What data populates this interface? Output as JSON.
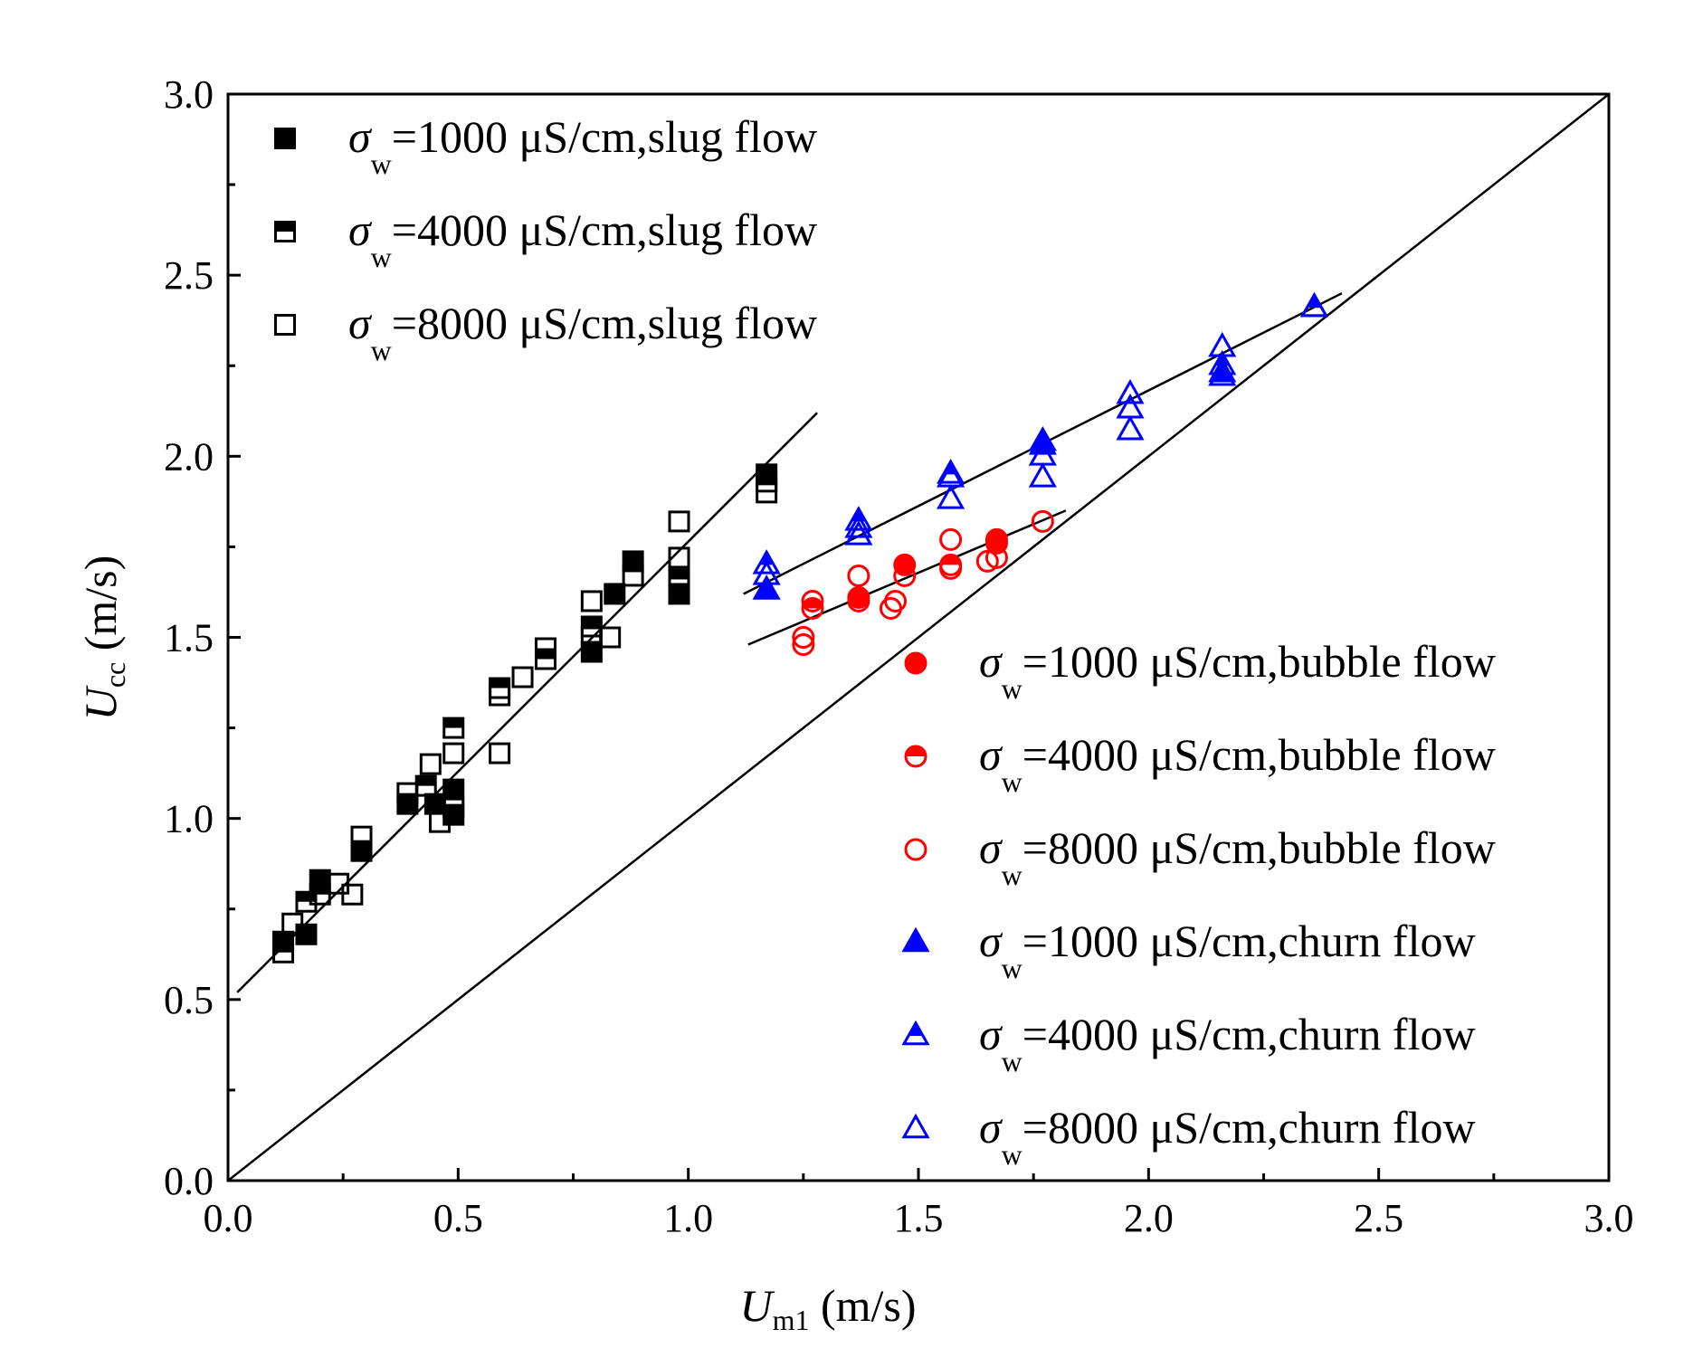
{
  "chart_data": {
    "type": "scatter",
    "xlabel": {
      "main": "U",
      "sub": "m1",
      "unit": " (m/s)"
    },
    "ylabel": {
      "main": "U",
      "sub": "cc",
      "unit": " (m/s)"
    },
    "xlim": [
      0.0,
      3.0
    ],
    "ylim": [
      0.0,
      3.0
    ],
    "xticks": [
      "0.0",
      "0.5",
      "1.0",
      "1.5",
      "2.0",
      "2.5",
      "3.0"
    ],
    "yticks": [
      "0.0",
      "0.5",
      "1.0",
      "1.5",
      "2.0",
      "2.5",
      "3.0"
    ],
    "grid": false,
    "series": [
      {
        "name": "σw=1000 μS/cm,slug flow",
        "symbol": "σ",
        "sub": "w",
        "rest": "=1000 μS/cm,slug flow",
        "color": "#000000",
        "marker": "square",
        "fill": "full",
        "points": [
          [
            0.12,
            0.66
          ],
          [
            0.17,
            0.68
          ],
          [
            0.2,
            0.83
          ],
          [
            0.29,
            0.91
          ],
          [
            0.39,
            1.04
          ],
          [
            0.45,
            1.04
          ],
          [
            0.49,
            1.01
          ],
          [
            0.49,
            1.08
          ],
          [
            0.79,
            1.46
          ],
          [
            0.84,
            1.62
          ],
          [
            0.88,
            1.71
          ],
          [
            0.98,
            1.62
          ],
          [
            1.17,
            1.95
          ]
        ]
      },
      {
        "name": "σw=4000 μS/cm,slug flow",
        "symbol": "σ",
        "sub": "w",
        "rest": "=4000 μS/cm,slug flow",
        "color": "#000000",
        "marker": "square",
        "fill": "half",
        "points": [
          [
            0.17,
            0.77
          ],
          [
            0.2,
            0.79
          ],
          [
            0.43,
            1.09
          ],
          [
            0.49,
            1.25
          ],
          [
            0.59,
            1.36
          ],
          [
            0.69,
            1.44
          ],
          [
            0.79,
            1.53
          ],
          [
            0.98,
            1.66
          ],
          [
            1.17,
            1.93
          ]
        ]
      },
      {
        "name": "σw=8000 μS/cm,slug flow",
        "symbol": "σ",
        "sub": "w",
        "rest": "=8000 μS/cm,slug flow",
        "color": "#000000",
        "marker": "square",
        "fill": "none",
        "points": [
          [
            0.12,
            0.63
          ],
          [
            0.14,
            0.71
          ],
          [
            0.24,
            0.82
          ],
          [
            0.27,
            0.79
          ],
          [
            0.29,
            0.95
          ],
          [
            0.39,
            1.07
          ],
          [
            0.44,
            1.15
          ],
          [
            0.46,
            0.99
          ],
          [
            0.49,
            1.18
          ],
          [
            0.49,
            1.03
          ],
          [
            0.59,
            1.34
          ],
          [
            0.59,
            1.18
          ],
          [
            0.64,
            1.39
          ],
          [
            0.69,
            1.47
          ],
          [
            0.79,
            1.6
          ],
          [
            0.79,
            1.5
          ],
          [
            0.83,
            1.5
          ],
          [
            0.88,
            1.67
          ],
          [
            0.98,
            1.82
          ],
          [
            0.98,
            1.72
          ],
          [
            1.17,
            1.9
          ]
        ]
      },
      {
        "name": "σw=1000 μS/cm,bubble flow",
        "symbol": "σ",
        "sub": "w",
        "rest": "=1000 μS/cm,bubble flow",
        "color": "#ff0000",
        "marker": "circle",
        "fill": "full",
        "points": [
          [
            1.37,
            1.61
          ],
          [
            1.47,
            1.7
          ],
          [
            1.67,
            1.76
          ]
        ]
      },
      {
        "name": "σw=4000 μS/cm,bubble flow",
        "symbol": "σ",
        "sub": "w",
        "rest": "=4000 μS/cm,bubble flow",
        "color": "#ff0000",
        "marker": "circle",
        "fill": "half",
        "points": [
          [
            1.27,
            1.58
          ],
          [
            1.57,
            1.7
          ],
          [
            1.67,
            1.77
          ]
        ]
      },
      {
        "name": "σw=8000 μS/cm,bubble flow",
        "symbol": "σ",
        "sub": "w",
        "rest": "=8000 μS/cm,bubble flow",
        "color": "#ff0000",
        "marker": "circle",
        "fill": "none",
        "points": [
          [
            1.25,
            1.48
          ],
          [
            1.25,
            1.5
          ],
          [
            1.27,
            1.6
          ],
          [
            1.37,
            1.67
          ],
          [
            1.37,
            1.6
          ],
          [
            1.44,
            1.58
          ],
          [
            1.45,
            1.6
          ],
          [
            1.47,
            1.67
          ],
          [
            1.57,
            1.77
          ],
          [
            1.57,
            1.69
          ],
          [
            1.65,
            1.71
          ],
          [
            1.67,
            1.72
          ],
          [
            1.77,
            1.82
          ]
        ]
      },
      {
        "name": "σw=1000 μS/cm,churn flow",
        "symbol": "σ",
        "sub": "w",
        "rest": "=1000 μS/cm,churn flow",
        "color": "#0000ff",
        "marker": "triangle",
        "fill": "full",
        "points": [
          [
            1.17,
            1.63
          ],
          [
            1.77,
            2.03
          ],
          [
            2.16,
            2.23
          ]
        ]
      },
      {
        "name": "σw=4000 μS/cm,churn flow",
        "symbol": "σ",
        "sub": "w",
        "rest": "=4000 μS/cm,churn flow",
        "color": "#0000ff",
        "marker": "triangle",
        "fill": "half",
        "points": [
          [
            1.17,
            1.7
          ],
          [
            1.37,
            1.82
          ],
          [
            1.57,
            1.95
          ],
          [
            1.77,
            2.04
          ],
          [
            2.16,
            2.25
          ],
          [
            2.36,
            2.41
          ]
        ]
      },
      {
        "name": "σw=8000 μS/cm,churn flow",
        "symbol": "σ",
        "sub": "w",
        "rest": "=8000 μS/cm,churn flow",
        "color": "#0000ff",
        "marker": "triangle",
        "fill": "none",
        "points": [
          [
            1.17,
            1.67
          ],
          [
            1.37,
            1.8
          ],
          [
            1.37,
            1.78
          ],
          [
            1.57,
            1.94
          ],
          [
            1.57,
            1.88
          ],
          [
            1.77,
            2.0
          ],
          [
            1.77,
            1.94
          ],
          [
            1.96,
            2.17
          ],
          [
            1.96,
            2.13
          ],
          [
            1.96,
            2.07
          ],
          [
            2.16,
            2.3
          ],
          [
            2.16,
            2.22
          ],
          [
            2.36,
            2.41
          ]
        ]
      }
    ],
    "lines": [
      {
        "name": "fit-slug",
        "from": [
          0.02,
          0.52
        ],
        "to": [
          1.28,
          2.12
        ]
      },
      {
        "name": "fit-churn",
        "from": [
          1.12,
          1.62
        ],
        "to": [
          2.42,
          2.45
        ]
      },
      {
        "name": "fit-bubble",
        "from": [
          1.13,
          1.48
        ],
        "to": [
          1.82,
          1.85
        ]
      },
      {
        "name": "y-equals-x",
        "from": [
          0.0,
          0.0
        ],
        "to": [
          3.0,
          3.0
        ]
      }
    ],
    "legends": [
      {
        "position": "top-left",
        "series": [
          0,
          1,
          2
        ]
      },
      {
        "position": "bottom-right",
        "series": [
          3,
          4,
          5,
          6,
          7,
          8
        ]
      }
    ]
  }
}
